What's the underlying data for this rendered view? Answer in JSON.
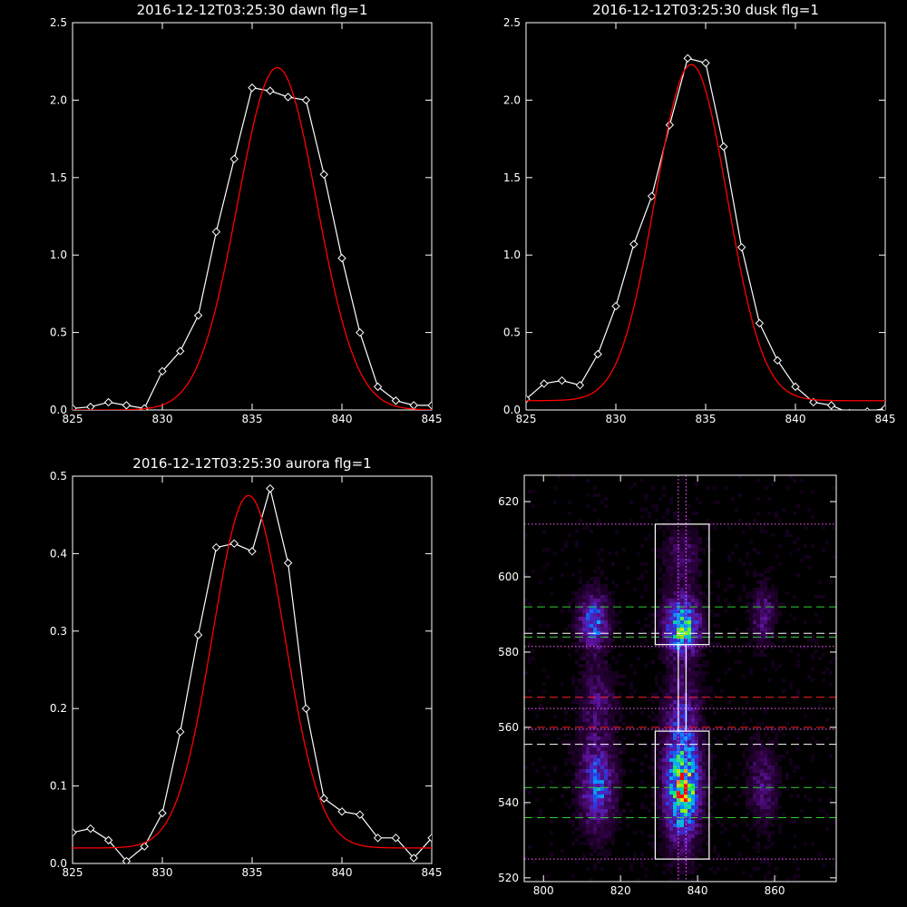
{
  "chart_data": [
    {
      "type": "line",
      "title": "2016-12-12T03:25:30 dawn flg=1",
      "xlim": [
        825,
        845
      ],
      "ylim": [
        0,
        2.5
      ],
      "xticks": [
        "825",
        "830",
        "835",
        "840",
        "845"
      ],
      "yticks": [
        "0.0",
        "0.5",
        "1.0",
        "1.5",
        "2.0",
        "2.5"
      ],
      "series": [
        {
          "x": [
            825,
            826,
            827,
            828,
            829,
            830,
            831,
            832,
            833,
            834,
            835,
            836,
            837,
            838,
            839,
            840,
            841,
            842,
            843,
            844,
            845
          ],
          "values": [
            0.01,
            0.02,
            0.05,
            0.03,
            0.01,
            0.25,
            0.38,
            0.61,
            1.15,
            1.62,
            2.08,
            2.06,
            2.02,
            2.0,
            1.52,
            0.98,
            0.5,
            0.15,
            0.06,
            0.03,
            0.03
          ],
          "color": "#ffffff",
          "markers": "diamond"
        },
        {
          "gaussian": {
            "mu": 836.4,
            "sigma": 2.2,
            "amp": 2.21,
            "base": 0.0
          },
          "color": "#ff0000"
        }
      ]
    },
    {
      "type": "line",
      "title": "2016-12-12T03:25:30 dusk flg=1",
      "xlim": [
        825,
        845
      ],
      "ylim": [
        0,
        2.5
      ],
      "xticks": [
        "825",
        "830",
        "835",
        "840",
        "845"
      ],
      "yticks": [
        "0.0",
        "0.5",
        "1.0",
        "1.5",
        "2.0",
        "2.5"
      ],
      "series": [
        {
          "x": [
            825,
            826,
            827,
            828,
            829,
            830,
            831,
            832,
            833,
            834,
            835,
            836,
            837,
            838,
            839,
            840,
            841,
            842,
            843,
            844,
            845
          ],
          "values": [
            0.07,
            0.17,
            0.19,
            0.16,
            0.36,
            0.67,
            1.07,
            1.38,
            1.84,
            2.27,
            2.24,
            1.7,
            1.05,
            0.56,
            0.32,
            0.15,
            0.05,
            0.03,
            -0.02,
            -0.01,
            0.01
          ],
          "color": "#ffffff",
          "markers": "diamond"
        },
        {
          "gaussian": {
            "mu": 834.2,
            "sigma": 2.0,
            "amp": 2.17,
            "base": 0.06
          },
          "color": "#ff0000"
        }
      ]
    },
    {
      "type": "line",
      "title": "2016-12-12T03:25:30 aurora flg=1",
      "xlim": [
        825,
        845
      ],
      "ylim": [
        0,
        0.5
      ],
      "xticks": [
        "825",
        "830",
        "835",
        "840",
        "845"
      ],
      "yticks": [
        "0.0",
        "0.1",
        "0.2",
        "0.3",
        "0.4",
        "0.5"
      ],
      "series": [
        {
          "x": [
            825,
            826,
            827,
            828,
            829,
            830,
            831,
            832,
            833,
            834,
            835,
            836,
            837,
            838,
            839,
            840,
            841,
            842,
            843,
            844,
            845
          ],
          "values": [
            0.04,
            0.045,
            0.03,
            0.003,
            0.022,
            0.065,
            0.17,
            0.295,
            0.408,
            0.413,
            0.403,
            0.484,
            0.388,
            0.2,
            0.084,
            0.067,
            0.063,
            0.033,
            0.033,
            0.007,
            0.033
          ],
          "color": "#ffffff",
          "markers": "diamond"
        },
        {
          "gaussian": {
            "mu": 834.8,
            "sigma": 2.0,
            "amp": 0.455,
            "base": 0.02
          },
          "color": "#ff0000"
        }
      ]
    },
    {
      "type": "heatmap",
      "title": "",
      "xlim": [
        795,
        876
      ],
      "ylim": [
        519,
        627
      ],
      "xticks": [
        "800",
        "820",
        "840",
        "860"
      ],
      "yticks": [
        "520",
        "540",
        "560",
        "580",
        "600",
        "620"
      ],
      "blobs": [
        {
          "x": 813,
          "y": 588,
          "sx": 2.5,
          "sy": 5,
          "amp": 0.45
        },
        {
          "x": 814,
          "y": 545,
          "sx": 3,
          "sy": 8,
          "amp": 0.42
        },
        {
          "x": 836,
          "y": 587,
          "sx": 3,
          "sy": 5,
          "amp": 0.7
        },
        {
          "x": 836,
          "y": 545,
          "sx": 3,
          "sy": 10,
          "amp": 0.75
        },
        {
          "x": 837,
          "y": 542,
          "sx": 1.5,
          "sy": 2,
          "amp": 0.3
        },
        {
          "x": 857,
          "y": 590,
          "sx": 2,
          "sy": 5,
          "amp": 0.22
        },
        {
          "x": 857,
          "y": 545,
          "sx": 2.5,
          "sy": 7,
          "amp": 0.2
        },
        {
          "x": 814,
          "y": 567,
          "sx": 3,
          "sy": 6,
          "amp": 0.18
        },
        {
          "x": 836,
          "y": 566,
          "sx": 3,
          "sy": 7,
          "amp": 0.2
        },
        {
          "x": 836,
          "y": 606,
          "sx": 3,
          "sy": 5,
          "amp": 0.18
        }
      ],
      "boxes": [
        {
          "x0": 829,
          "x1": 843,
          "y0": 582,
          "y1": 614
        },
        {
          "x0": 829,
          "x1": 843,
          "y0": 525,
          "y1": 559
        },
        {
          "x0": 835,
          "x1": 837,
          "y0": 559,
          "y1": 582
        }
      ],
      "hlines": [
        {
          "y": 614,
          "color": "#ff66ff",
          "style": "dotted"
        },
        {
          "y": 592,
          "color": "#33cc33",
          "style": "dashed"
        },
        {
          "y": 585,
          "color": "#ffffff",
          "style": "dashed"
        },
        {
          "y": 584,
          "color": "#33cc33",
          "style": "dashed"
        },
        {
          "y": 581.5,
          "color": "#ff66ff",
          "style": "dotted"
        },
        {
          "y": 568,
          "color": "#ff2222",
          "style": "dashed"
        },
        {
          "y": 565,
          "color": "#ff66ff",
          "style": "dotted"
        },
        {
          "y": 560,
          "color": "#ff2222",
          "style": "dashed"
        },
        {
          "y": 559.5,
          "color": "#ff66ff",
          "style": "dotted"
        },
        {
          "y": 555.5,
          "color": "#ffffff",
          "style": "dashed"
        },
        {
          "y": 544,
          "color": "#33cc33",
          "style": "dashed"
        },
        {
          "y": 536,
          "color": "#33cc33",
          "style": "dashed"
        },
        {
          "y": 525,
          "color": "#ff66ff",
          "style": "dotted"
        }
      ],
      "vlines": [
        {
          "x": 835,
          "color": "#ff66ff",
          "style": "dotted"
        },
        {
          "x": 837,
          "color": "#ff66ff",
          "style": "dotted"
        }
      ]
    }
  ]
}
